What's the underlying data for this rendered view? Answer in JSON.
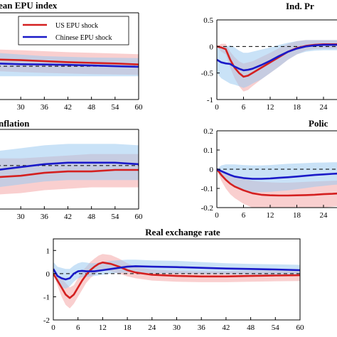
{
  "colors": {
    "us": "#d42020",
    "cn": "#1a1ac8",
    "us_band": "#f4a7a7",
    "cn_band": "#9ccbf0",
    "zero_line": "#000000"
  },
  "legend": {
    "entries": [
      {
        "label": "US EPU shock",
        "color": "#d42020"
      },
      {
        "label": "Chinese EPU shock",
        "color": "#1a1ac8"
      }
    ]
  },
  "chart_data": [
    {
      "type": "line",
      "title": "ean EPU index",
      "x_ticks": [
        "30",
        "36",
        "42",
        "48",
        "54",
        "60"
      ],
      "x_tick_values": [
        30,
        36,
        42,
        48,
        54,
        60
      ],
      "y_ticks": [],
      "xlim": [
        24,
        60
      ],
      "ylim": [
        -1,
        1.6
      ],
      "legend": true,
      "series": [
        {
          "key": "us",
          "x": [
            24,
            30,
            36,
            42,
            48,
            54,
            60
          ],
          "y": [
            0.2,
            0.18,
            0.15,
            0.12,
            0.1,
            0.08,
            0.05
          ],
          "lower": [
            -0.15,
            -0.18,
            -0.2,
            -0.22,
            -0.24,
            -0.25,
            -0.26
          ],
          "upper": [
            0.5,
            0.48,
            0.45,
            0.42,
            0.4,
            0.38,
            0.36
          ]
        },
        {
          "key": "cn",
          "x": [
            24,
            30,
            36,
            42,
            48,
            54,
            60
          ],
          "y": [
            0.08,
            0.06,
            0.05,
            0.04,
            0.02,
            0.0,
            -0.02
          ],
          "lower": [
            -0.3,
            -0.3,
            -0.3,
            -0.3,
            -0.3,
            -0.3,
            -0.3
          ],
          "upper": [
            0.4,
            0.35,
            0.3,
            0.28,
            0.26,
            0.25,
            0.24
          ]
        }
      ]
    },
    {
      "type": "line",
      "title": "Ind. Pr",
      "x_ticks": [
        "0",
        "6",
        "12",
        "18",
        "24"
      ],
      "x_tick_values": [
        0,
        6,
        12,
        18,
        24
      ],
      "y_ticks": [
        "0.5",
        "0",
        "-0.5",
        "-1"
      ],
      "y_tick_values": [
        0.5,
        0,
        -0.5,
        -1
      ],
      "xlim": [
        0,
        28
      ],
      "ylim": [
        -1,
        0.5
      ],
      "series": [
        {
          "key": "us",
          "x": [
            0,
            1,
            2,
            3,
            4,
            5,
            6,
            7,
            8,
            10,
            12,
            14,
            16,
            18,
            20,
            22,
            24,
            26,
            28
          ],
          "y": [
            0,
            -0.02,
            -0.05,
            -0.25,
            -0.4,
            -0.5,
            -0.57,
            -0.55,
            -0.5,
            -0.4,
            -0.3,
            -0.2,
            -0.1,
            -0.03,
            0.01,
            0.03,
            0.04,
            0.04,
            0.04
          ],
          "lower": [
            0,
            -0.1,
            -0.15,
            -0.4,
            -0.6,
            -0.75,
            -0.85,
            -0.82,
            -0.75,
            -0.62,
            -0.5,
            -0.38,
            -0.25,
            -0.15,
            -0.08,
            -0.05,
            -0.04,
            -0.04,
            -0.04
          ],
          "upper": [
            0,
            0.05,
            0.05,
            -0.1,
            -0.2,
            -0.28,
            -0.32,
            -0.3,
            -0.28,
            -0.2,
            -0.12,
            -0.03,
            0.05,
            0.1,
            0.12,
            0.12,
            0.12,
            0.12,
            0.12
          ]
        },
        {
          "key": "cn",
          "x": [
            0,
            1,
            2,
            3,
            4,
            5,
            6,
            7,
            8,
            10,
            12,
            14,
            16,
            18,
            20,
            22,
            24,
            26,
            28
          ],
          "y": [
            -0.25,
            -0.3,
            -0.32,
            -0.33,
            -0.38,
            -0.42,
            -0.45,
            -0.44,
            -0.42,
            -0.35,
            -0.27,
            -0.18,
            -0.1,
            -0.04,
            0.0,
            0.02,
            0.03,
            0.03,
            0.03
          ],
          "lower": [
            -0.5,
            -0.6,
            -0.65,
            -0.7,
            -0.72,
            -0.75,
            -0.78,
            -0.75,
            -0.7,
            -0.62,
            -0.5,
            -0.38,
            -0.25,
            -0.15,
            -0.1,
            -0.08,
            -0.07,
            -0.07,
            -0.07
          ],
          "upper": [
            0.0,
            0.0,
            0.0,
            0.02,
            -0.02,
            -0.08,
            -0.12,
            -0.12,
            -0.1,
            -0.06,
            -0.02,
            0.03,
            0.07,
            0.1,
            0.12,
            0.12,
            0.12,
            0.12,
            0.12
          ]
        }
      ]
    },
    {
      "type": "line",
      "title": "nflation",
      "x_ticks": [
        "30",
        "36",
        "42",
        "48",
        "54",
        "60"
      ],
      "x_tick_values": [
        30,
        36,
        42,
        48,
        54,
        60
      ],
      "y_ticks": [],
      "xlim": [
        24,
        60
      ],
      "ylim": [
        -0.3,
        0.25
      ],
      "series": [
        {
          "key": "us",
          "x": [
            24,
            30,
            36,
            42,
            48,
            54,
            60
          ],
          "y": [
            -0.08,
            -0.07,
            -0.05,
            -0.04,
            -0.04,
            -0.03,
            -0.03
          ],
          "lower": [
            -0.2,
            -0.19,
            -0.17,
            -0.16,
            -0.15,
            -0.15,
            -0.15
          ],
          "upper": [
            0.05,
            0.05,
            0.06,
            0.07,
            0.08,
            0.08,
            0.08
          ]
        },
        {
          "key": "cn",
          "x": [
            24,
            30,
            36,
            42,
            48,
            54,
            60
          ],
          "y": [
            -0.03,
            -0.01,
            0.01,
            0.02,
            0.02,
            0.02,
            0.01
          ],
          "lower": [
            -0.15,
            -0.13,
            -0.11,
            -0.1,
            -0.1,
            -0.1,
            -0.1
          ],
          "upper": [
            0.1,
            0.12,
            0.14,
            0.15,
            0.15,
            0.15,
            0.14
          ]
        }
      ]
    },
    {
      "type": "line",
      "title": "Polic",
      "x_ticks": [
        "0",
        "6",
        "12",
        "18",
        "24"
      ],
      "x_tick_values": [
        0,
        6,
        12,
        18,
        24
      ],
      "y_ticks": [
        "0.2",
        "0.1",
        "0",
        "-0.1",
        "-0.2"
      ],
      "y_tick_values": [
        0.2,
        0.1,
        0,
        -0.1,
        -0.2
      ],
      "xlim": [
        0,
        28
      ],
      "ylim": [
        -0.2,
        0.2
      ],
      "series": [
        {
          "key": "us",
          "x": [
            0,
            1,
            2,
            3,
            4,
            6,
            8,
            10,
            12,
            14,
            16,
            18,
            20,
            22,
            24,
            26,
            28
          ],
          "y": [
            0,
            -0.03,
            -0.055,
            -0.075,
            -0.09,
            -0.11,
            -0.125,
            -0.133,
            -0.136,
            -0.137,
            -0.137,
            -0.136,
            -0.135,
            -0.133,
            -0.13,
            -0.128,
            -0.125
          ],
          "lower": [
            0,
            -0.06,
            -0.1,
            -0.13,
            -0.15,
            -0.18,
            -0.2,
            -0.21,
            -0.215,
            -0.215,
            -0.215,
            -0.212,
            -0.21,
            -0.205,
            -0.2,
            -0.195,
            -0.19
          ],
          "upper": [
            0,
            -0.005,
            -0.015,
            -0.025,
            -0.035,
            -0.05,
            -0.06,
            -0.065,
            -0.068,
            -0.07,
            -0.07,
            -0.068,
            -0.066,
            -0.064,
            -0.062,
            -0.06,
            -0.058
          ]
        },
        {
          "key": "cn",
          "x": [
            0,
            1,
            2,
            3,
            4,
            6,
            8,
            10,
            12,
            14,
            16,
            18,
            20,
            22,
            24,
            26,
            28
          ],
          "y": [
            0,
            -0.01,
            -0.02,
            -0.03,
            -0.038,
            -0.046,
            -0.05,
            -0.05,
            -0.048,
            -0.045,
            -0.042,
            -0.038,
            -0.034,
            -0.03,
            -0.027,
            -0.024,
            -0.022
          ],
          "lower": [
            0,
            -0.04,
            -0.06,
            -0.08,
            -0.095,
            -0.11,
            -0.12,
            -0.12,
            -0.118,
            -0.114,
            -0.11,
            -0.104,
            -0.098,
            -0.092,
            -0.087,
            -0.082,
            -0.078
          ],
          "upper": [
            0,
            0.02,
            0.025,
            0.025,
            0.025,
            0.022,
            0.02,
            0.02,
            0.022,
            0.025,
            0.028,
            0.03,
            0.032,
            0.034,
            0.035,
            0.036,
            0.036
          ]
        }
      ]
    },
    {
      "type": "line",
      "title": "Real exchange rate",
      "x_ticks": [
        "0",
        "6",
        "12",
        "18",
        "24",
        "30",
        "36",
        "42",
        "48",
        "54",
        "60"
      ],
      "x_tick_values": [
        0,
        6,
        12,
        18,
        24,
        30,
        36,
        42,
        48,
        54,
        60
      ],
      "y_ticks": [
        "1",
        "0",
        "-1",
        "-2"
      ],
      "y_tick_values": [
        1,
        0,
        -1,
        -2
      ],
      "xlim": [
        0,
        60
      ],
      "ylim": [
        -2,
        1.5
      ],
      "series": [
        {
          "key": "us",
          "x": [
            0,
            1,
            2,
            3,
            4,
            5,
            6,
            7,
            8,
            9,
            10,
            11,
            12,
            14,
            16,
            18,
            20,
            24,
            30,
            36,
            42,
            48,
            54,
            60
          ],
          "y": [
            0,
            -0.3,
            -0.6,
            -0.9,
            -1.05,
            -0.9,
            -0.6,
            -0.3,
            -0.05,
            0.15,
            0.3,
            0.42,
            0.48,
            0.42,
            0.3,
            0.15,
            0.05,
            -0.05,
            -0.1,
            -0.12,
            -0.12,
            -0.1,
            -0.08,
            -0.07
          ],
          "lower": [
            0,
            -0.5,
            -1.0,
            -1.35,
            -1.5,
            -1.3,
            -1.0,
            -0.7,
            -0.4,
            -0.2,
            -0.05,
            0.08,
            0.15,
            0.1,
            0.0,
            -0.12,
            -0.2,
            -0.3,
            -0.35,
            -0.37,
            -0.37,
            -0.35,
            -0.33,
            -0.32
          ],
          "upper": [
            0,
            -0.1,
            -0.2,
            -0.4,
            -0.6,
            -0.5,
            -0.2,
            0.1,
            0.3,
            0.5,
            0.65,
            0.78,
            0.85,
            0.8,
            0.65,
            0.45,
            0.3,
            0.18,
            0.12,
            0.1,
            0.1,
            0.12,
            0.14,
            0.16
          ]
        },
        {
          "key": "cn",
          "x": [
            0,
            1,
            2,
            3,
            4,
            5,
            6,
            7,
            8,
            9,
            10,
            12,
            14,
            16,
            18,
            20,
            24,
            30,
            36,
            42,
            48,
            54,
            60
          ],
          "y": [
            0.2,
            -0.1,
            -0.2,
            -0.25,
            -0.2,
            0.0,
            0.1,
            0.12,
            0.1,
            0.1,
            0.1,
            0.15,
            0.2,
            0.25,
            0.3,
            0.32,
            0.3,
            0.28,
            0.25,
            0.22,
            0.2,
            0.18,
            0.15
          ],
          "lower": [
            0.0,
            -0.4,
            -0.6,
            -0.65,
            -0.55,
            -0.35,
            -0.2,
            -0.15,
            -0.15,
            -0.12,
            -0.1,
            -0.05,
            0.0,
            0.03,
            0.05,
            0.05,
            0.02,
            0.0,
            -0.02,
            -0.03,
            -0.04,
            -0.05,
            -0.06
          ],
          "upper": [
            0.5,
            0.3,
            0.25,
            0.2,
            0.2,
            0.35,
            0.45,
            0.5,
            0.48,
            0.45,
            0.45,
            0.5,
            0.55,
            0.58,
            0.6,
            0.6,
            0.57,
            0.55,
            0.5,
            0.45,
            0.42,
            0.4,
            0.38
          ]
        }
      ]
    }
  ]
}
